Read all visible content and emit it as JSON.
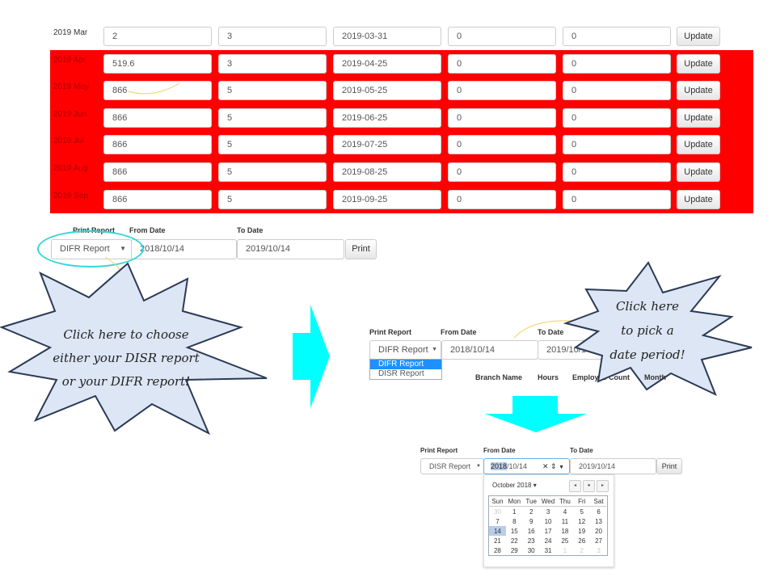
{
  "table": {
    "rows": [
      {
        "label": "2019 Mar",
        "values": [
          "2",
          "3",
          "2019-03-31",
          "0",
          "0"
        ],
        "highlight": false
      },
      {
        "label": "2019 Apr",
        "values": [
          "519.6",
          "3",
          "2019-04-25",
          "0",
          "0"
        ],
        "highlight": true
      },
      {
        "label": "2019 May",
        "values": [
          "866",
          "5",
          "2019-05-25",
          "0",
          "0"
        ],
        "highlight": true
      },
      {
        "label": "2019 Jun",
        "values": [
          "866",
          "5",
          "2019-06-25",
          "0",
          "0"
        ],
        "highlight": true
      },
      {
        "label": "2019 Jul",
        "values": [
          "866",
          "5",
          "2019-07-25",
          "0",
          "0"
        ],
        "highlight": true
      },
      {
        "label": "2019 Aug",
        "values": [
          "866",
          "5",
          "2019-08-25",
          "0",
          "0"
        ],
        "highlight": true
      },
      {
        "label": "2019 Sep",
        "values": [
          "866",
          "5",
          "2019-09-25",
          "0",
          "0"
        ],
        "highlight": true
      }
    ],
    "update_label": "Update",
    "highlight_color": "#ff0000"
  },
  "form1": {
    "print_report_label": "Print Report",
    "from_label": "From Date",
    "to_label": "To Date",
    "report": "DIFR Report",
    "from": "2018/10/14",
    "to": "2019/10/14",
    "print": "Print"
  },
  "form2": {
    "print_report_label": "Print Report",
    "from_label": "From Date",
    "to_label": "To Date",
    "report": "DIFR Report",
    "from": "2018/10/14",
    "to": "2019/10/14",
    "options": [
      "DIFR Report",
      "DISR Report"
    ],
    "headers": [
      "Branch Name",
      "Hours",
      "Employee Count",
      "Month"
    ]
  },
  "form3": {
    "print_report_label": "Print Report",
    "from_label": "From Date",
    "to_label": "To Date",
    "report": "DISR Report",
    "from_year": "2018",
    "from_rest": "/10/14",
    "to": "2019/10/14",
    "print": "Print"
  },
  "calendar": {
    "month": "October 2018",
    "weekdays": [
      "Sun",
      "Mon",
      "Tue",
      "Wed",
      "Thu",
      "Fri",
      "Sat"
    ],
    "weeks": [
      [
        "30",
        "1",
        "2",
        "3",
        "4",
        "5",
        "6"
      ],
      [
        "7",
        "8",
        "9",
        "10",
        "11",
        "12",
        "13"
      ],
      [
        "14",
        "15",
        "16",
        "17",
        "18",
        "19",
        "20"
      ],
      [
        "21",
        "22",
        "23",
        "24",
        "25",
        "26",
        "27"
      ],
      [
        "28",
        "29",
        "30",
        "31",
        "1",
        "2",
        "3"
      ]
    ],
    "selected": "14"
  },
  "callouts": {
    "left": [
      "Click here to choose",
      "either your DISR report",
      "or your DIFR report!"
    ],
    "right": [
      "Click here",
      "to pick a",
      "date period!"
    ]
  },
  "colors": {
    "accent_arrow": "#00ffff",
    "callout_fill": "#dce6f4",
    "ring": "#33d6d6"
  }
}
